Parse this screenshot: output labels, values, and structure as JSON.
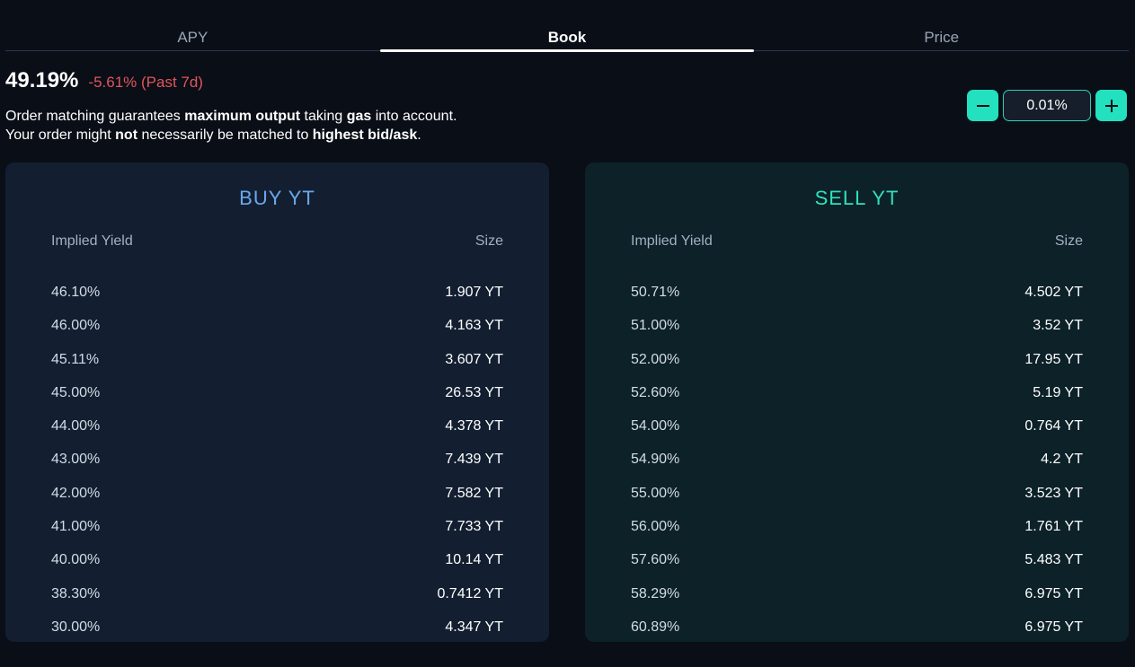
{
  "tabs": [
    {
      "label": "APY"
    },
    {
      "label": "Book"
    },
    {
      "label": "Price"
    }
  ],
  "summary": {
    "value": "49.19%",
    "change": "-5.61% (Past 7d)"
  },
  "note": {
    "line1": {
      "t1": "Order matching guarantees ",
      "b1": "maximum output",
      "t2": " taking ",
      "b2": "gas",
      "t3": " into account."
    },
    "line2": {
      "t1": "Your order might ",
      "b1": "not",
      "t2": " necessarily be matched to ",
      "b2": "highest bid/ask",
      "t3": "."
    }
  },
  "stepper": {
    "value": "0.01%"
  },
  "buy": {
    "title": "BUY YT",
    "col_yield": "Implied Yield",
    "col_size": "Size",
    "rows": [
      {
        "yield": "46.10%",
        "size": "1.907 YT"
      },
      {
        "yield": "46.00%",
        "size": "4.163 YT"
      },
      {
        "yield": "45.11%",
        "size": "3.607 YT"
      },
      {
        "yield": "45.00%",
        "size": "26.53 YT"
      },
      {
        "yield": "44.00%",
        "size": "4.378 YT"
      },
      {
        "yield": "43.00%",
        "size": "7.439 YT"
      },
      {
        "yield": "42.00%",
        "size": "7.582 YT"
      },
      {
        "yield": "41.00%",
        "size": "7.733 YT"
      },
      {
        "yield": "40.00%",
        "size": "10.14 YT"
      },
      {
        "yield": "38.30%",
        "size": "0.7412 YT"
      },
      {
        "yield": "30.00%",
        "size": "4.347 YT"
      }
    ]
  },
  "sell": {
    "title": "SELL YT",
    "col_yield": "Implied Yield",
    "col_size": "Size",
    "rows": [
      {
        "yield": "50.71%",
        "size": "4.502 YT"
      },
      {
        "yield": "51.00%",
        "size": "3.52 YT"
      },
      {
        "yield": "52.00%",
        "size": "17.95 YT"
      },
      {
        "yield": "52.60%",
        "size": "5.19 YT"
      },
      {
        "yield": "54.00%",
        "size": "0.764 YT"
      },
      {
        "yield": "54.90%",
        "size": "4.2 YT"
      },
      {
        "yield": "55.00%",
        "size": "3.523 YT"
      },
      {
        "yield": "56.00%",
        "size": "1.761 YT"
      },
      {
        "yield": "57.60%",
        "size": "5.483 YT"
      },
      {
        "yield": "58.29%",
        "size": "6.975 YT"
      },
      {
        "yield": "60.89%",
        "size": "6.975 YT"
      }
    ]
  },
  "colors": {
    "accent": "#23e0bf",
    "negative": "#e0565b",
    "buy_title": "#6aa8ec",
    "sell_title": "#2fe0be"
  },
  "icons": {
    "minus": "minus-icon",
    "plus": "plus-icon"
  }
}
